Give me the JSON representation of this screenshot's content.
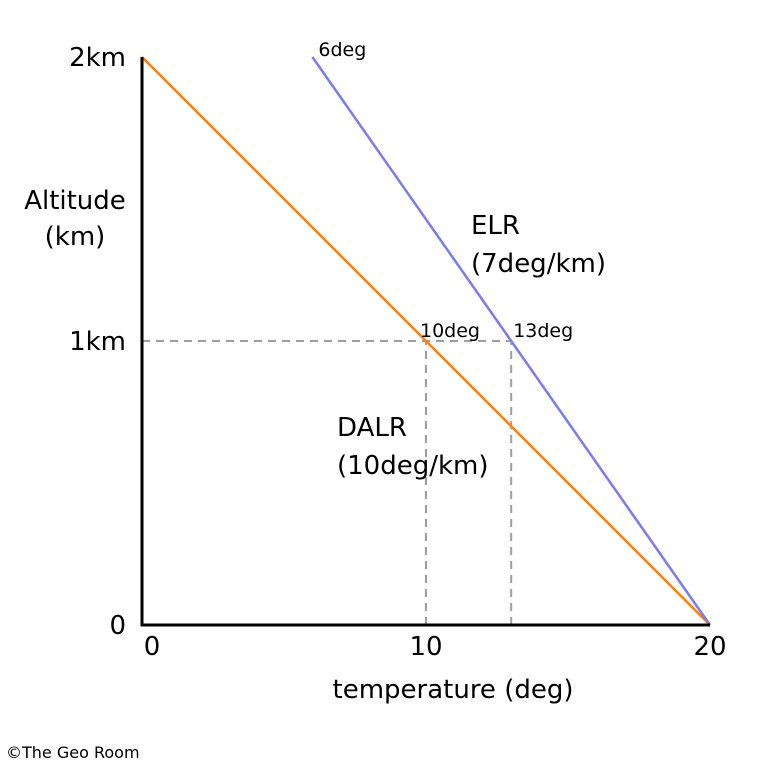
{
  "chart_data": {
    "type": "line",
    "x_axis": {
      "label": "temperature (deg)",
      "ticks": [
        0,
        10,
        20
      ],
      "range": [
        0,
        20
      ]
    },
    "y_axis": {
      "label_line1": "Altitude",
      "label_line2": "(km)",
      "ticks": [
        {
          "value": 0,
          "label": "0"
        },
        {
          "value": 1,
          "label": "1km"
        },
        {
          "value": 2,
          "label": "2km"
        }
      ],
      "range": [
        0,
        2
      ]
    },
    "series": [
      {
        "name": "DALR",
        "name_line1": "DALR",
        "name_line2": "(10deg/km)",
        "color": "#ff7f0e",
        "points": [
          {
            "x": 0,
            "y": 2
          },
          {
            "x": 20,
            "y": 0
          }
        ]
      },
      {
        "name": "ELR",
        "name_line1": "ELR",
        "name_line2": "(7deg/km)",
        "color": "#7b7bf0",
        "points": [
          {
            "x": 6,
            "y": 2
          },
          {
            "x": 20,
            "y": 0
          }
        ]
      }
    ],
    "annotations": [
      {
        "text": "6deg",
        "x": 6,
        "y": 2
      },
      {
        "text": "10deg",
        "x": 10,
        "y": 1
      },
      {
        "text": "13deg",
        "x": 13,
        "y": 1
      }
    ],
    "reference_lines": [
      {
        "type": "horizontal",
        "y": 1,
        "x_from": 0,
        "x_to": 13,
        "style": "dashed",
        "color": "#9e9e9e"
      },
      {
        "type": "vertical",
        "x": 10,
        "y_from": 0,
        "y_to": 1,
        "style": "dashed",
        "color": "#9e9e9e"
      },
      {
        "type": "vertical",
        "x": 13,
        "y_from": 0,
        "y_to": 1,
        "style": "dashed",
        "color": "#9e9e9e"
      }
    ],
    "axis_color": "#000000"
  },
  "credit": "©The Geo Room"
}
